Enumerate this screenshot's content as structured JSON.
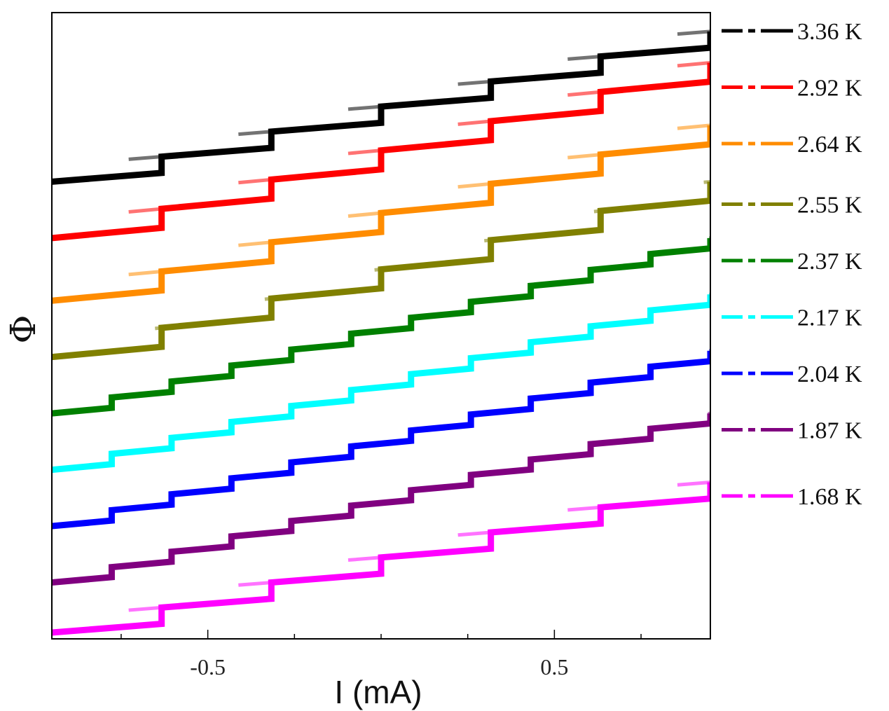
{
  "chart_data": {
    "type": "line",
    "title": "",
    "xlabel": "I (mA)",
    "ylabel": "Φ",
    "xlim": [
      -0.95,
      0.95
    ],
    "ylim": [
      0,
      1
    ],
    "xticks": [
      {
        "value": -0.5,
        "label": "-0.5"
      },
      {
        "value": 0.5,
        "label": "0.5"
      }
    ],
    "minor_xticks": [
      -0.75,
      -0.25,
      0.0,
      0.25,
      0.75
    ],
    "yticks_shown": false,
    "legend_position": "right",
    "series": [
      {
        "name": "3.36 K",
        "color": "#000000",
        "start": 0.73,
        "end": 0.97,
        "steps": 6,
        "hysteresis": 0.3
      },
      {
        "name": "2.92 K",
        "color": "#ff0000",
        "start": 0.64,
        "end": 0.92,
        "steps": 6,
        "hysteresis": 0.3
      },
      {
        "name": "2.64 K",
        "color": "#ff8c00",
        "start": 0.54,
        "end": 0.82,
        "steps": 6,
        "hysteresis": 0.3
      },
      {
        "name": "2.55 K",
        "color": "#808000",
        "start": 0.45,
        "end": 0.73,
        "steps": 6,
        "hysteresis": 0.06
      },
      {
        "name": "2.37 K",
        "color": "#008000",
        "start": 0.36,
        "end": 0.64,
        "steps": 11,
        "hysteresis": 0.02
      },
      {
        "name": "2.17 K",
        "color": "#00ffff",
        "start": 0.27,
        "end": 0.55,
        "steps": 11,
        "hysteresis": 0.02
      },
      {
        "name": "2.04 K",
        "color": "#0000ff",
        "start": 0.18,
        "end": 0.46,
        "steps": 11,
        "hysteresis": 0.02
      },
      {
        "name": "1.87 K",
        "color": "#800080",
        "start": 0.09,
        "end": 0.36,
        "steps": 11,
        "hysteresis": 0.04
      },
      {
        "name": "1.68 K",
        "color": "#ff00ff",
        "start": 0.01,
        "end": 0.25,
        "steps": 6,
        "hysteresis": 0.3
      }
    ]
  }
}
